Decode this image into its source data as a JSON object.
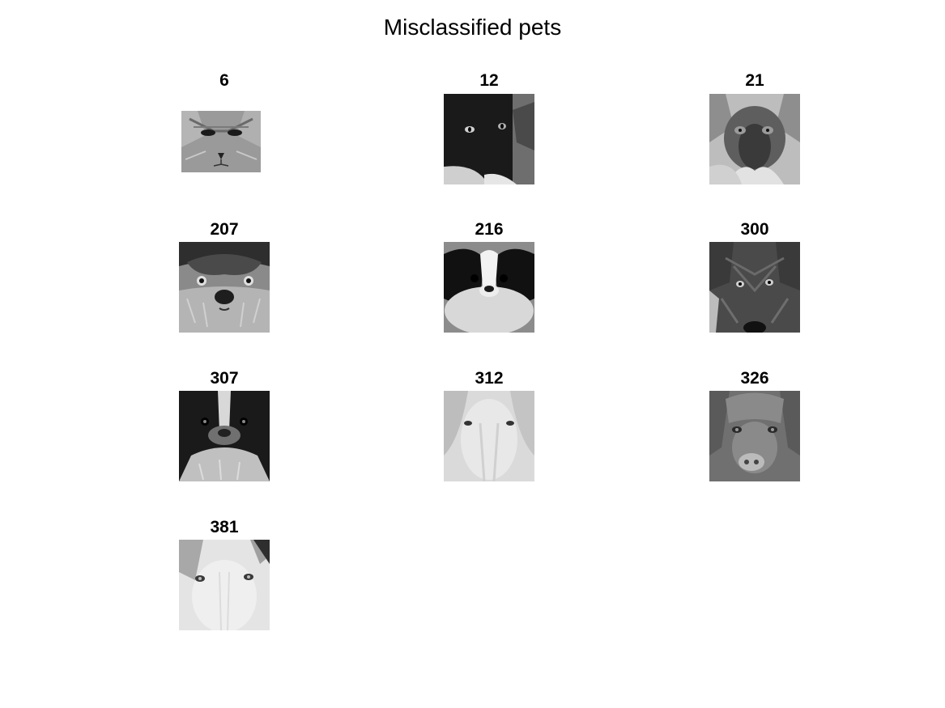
{
  "figure": {
    "title": "Misclassified pets"
  },
  "panels": [
    {
      "label": "6",
      "subject": "tabby-cat-face"
    },
    {
      "label": "12",
      "subject": "black-cat-face"
    },
    {
      "label": "21",
      "subject": "siamese-cat-face"
    },
    {
      "label": "207",
      "subject": "shih-tzu-face"
    },
    {
      "label": "216",
      "subject": "japanese-chin-face"
    },
    {
      "label": "300",
      "subject": "terrier-face"
    },
    {
      "label": "307",
      "subject": "spaniel-face"
    },
    {
      "label": "312",
      "subject": "golden-retriever-face"
    },
    {
      "label": "326",
      "subject": "brown-dog-face"
    },
    {
      "label": "381",
      "subject": "white-dog-face"
    }
  ]
}
